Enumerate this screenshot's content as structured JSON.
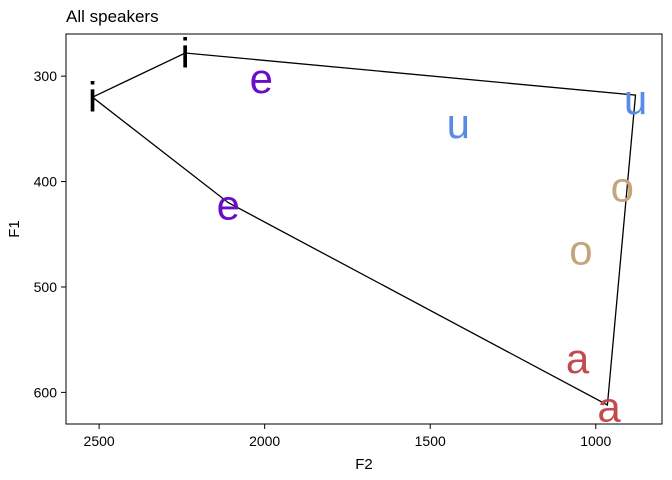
{
  "chart_data": {
    "type": "scatter",
    "title": "All speakers",
    "xlabel": "F2",
    "ylabel": "F1",
    "x_reversed": true,
    "y_reversed": true,
    "xlim": [
      2600,
      800
    ],
    "ylim": [
      260,
      630
    ],
    "x_ticks": [
      2500,
      2000,
      1500,
      1000
    ],
    "y_ticks": [
      300,
      400,
      500,
      600
    ],
    "grid": false,
    "legend": "none",
    "colors": {
      "i": "#000000",
      "e": "#6a0dc8",
      "u": "#5b8ae6",
      "o": "#c4a57c",
      "a": "#c24b4b"
    },
    "points": [
      {
        "label": "i",
        "F2": 2520,
        "F1": 320
      },
      {
        "label": "i",
        "F2": 2240,
        "F1": 278
      },
      {
        "label": "e",
        "F2": 2010,
        "F1": 302
      },
      {
        "label": "e",
        "F2": 2110,
        "F1": 422
      },
      {
        "label": "u",
        "F2": 1415,
        "F1": 345
      },
      {
        "label": "u",
        "F2": 880,
        "F1": 322
      },
      {
        "label": "o",
        "F2": 920,
        "F1": 405
      },
      {
        "label": "o",
        "F2": 1045,
        "F1": 465
      },
      {
        "label": "a",
        "F2": 1055,
        "F1": 568
      },
      {
        "label": "a",
        "F2": 960,
        "F1": 614
      }
    ],
    "polygon": [
      {
        "F2": 2520,
        "F1": 320
      },
      {
        "F2": 2240,
        "F1": 278
      },
      {
        "F2": 880,
        "F1": 318
      },
      {
        "F2": 965,
        "F1": 612
      },
      {
        "F2": 2110,
        "F1": 420
      }
    ]
  }
}
